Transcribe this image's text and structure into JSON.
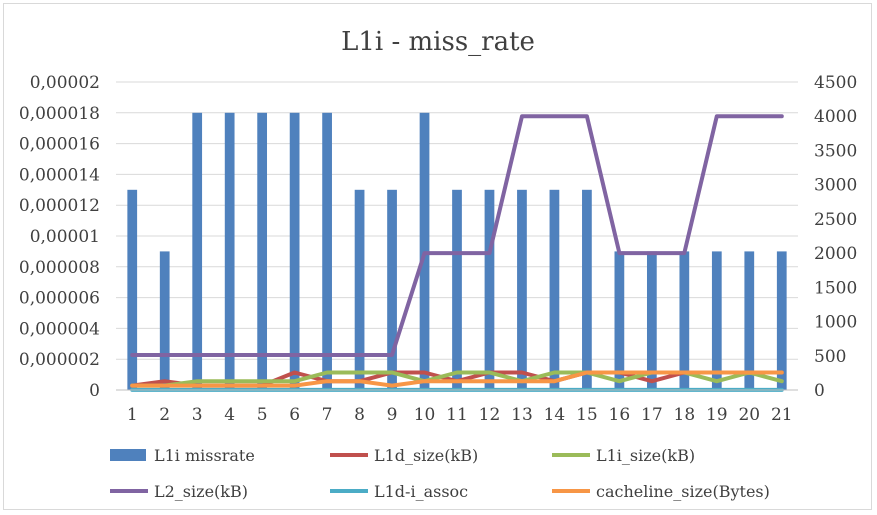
{
  "chart_data": {
    "type": "bar",
    "title": "L1i - miss_rate",
    "categories": [
      "1",
      "2",
      "3",
      "4",
      "5",
      "6",
      "7",
      "8",
      "9",
      "10",
      "11",
      "12",
      "13",
      "14",
      "15",
      "16",
      "17",
      "18",
      "19",
      "20",
      "21"
    ],
    "y_left": {
      "ylim": [
        0,
        2e-05
      ],
      "ticks": [
        "0",
        "0,000002",
        "0,000004",
        "0,000006",
        "0,000008",
        "0,00001",
        "0,000012",
        "0,000014",
        "0,000016",
        "0,000018",
        "0,00002"
      ]
    },
    "y_right": {
      "ylim": [
        0,
        4500
      ],
      "ticks": [
        "0",
        "500",
        "1000",
        "1500",
        "2000",
        "2500",
        "3000",
        "3500",
        "4000",
        "4500"
      ]
    },
    "grid": true,
    "legend_position": "bottom",
    "series": [
      {
        "name": "L1i missrate",
        "type": "bar",
        "axis": "left",
        "color": "#4f81bd",
        "values": [
          1.3e-05,
          9e-06,
          1.8e-05,
          1.8e-05,
          1.8e-05,
          1.8e-05,
          1.8e-05,
          1.3e-05,
          1.3e-05,
          1.8e-05,
          1.3e-05,
          1.3e-05,
          1.3e-05,
          1.3e-05,
          1.3e-05,
          9e-06,
          9e-06,
          9e-06,
          9e-06,
          9e-06,
          9e-06
        ]
      },
      {
        "name": "L1d_size(kB)",
        "type": "line",
        "axis": "right",
        "color": "#c0504d",
        "values": [
          64,
          128,
          64,
          64,
          64,
          256,
          128,
          128,
          256,
          256,
          128,
          256,
          256,
          128,
          256,
          256,
          128,
          256,
          256,
          256,
          256
        ]
      },
      {
        "name": "L1i_size(kB)",
        "type": "line",
        "axis": "right",
        "color": "#9bbb59",
        "values": [
          64,
          64,
          128,
          128,
          128,
          128,
          256,
          256,
          256,
          128,
          256,
          256,
          128,
          256,
          256,
          128,
          256,
          256,
          128,
          256,
          128
        ]
      },
      {
        "name": "L2_size(kB)",
        "type": "line",
        "axis": "right",
        "color": "#8064a2",
        "values": [
          512,
          512,
          512,
          512,
          512,
          512,
          512,
          512,
          512,
          2000,
          2000,
          2000,
          4000,
          4000,
          4000,
          2000,
          2000,
          2000,
          4000,
          4000,
          4000
        ]
      },
      {
        "name": "L1d-i_assoc",
        "type": "line",
        "axis": "right",
        "color": "#4bacc6",
        "values": [
          2,
          2,
          2,
          2,
          2,
          2,
          2,
          2,
          2,
          2,
          2,
          2,
          2,
          2,
          2,
          2,
          2,
          2,
          2,
          2,
          2
        ]
      },
      {
        "name": "cacheline_size(Bytes)",
        "type": "line",
        "axis": "right",
        "color": "#f79646",
        "values": [
          64,
          64,
          64,
          64,
          64,
          64,
          128,
          128,
          64,
          128,
          128,
          128,
          128,
          128,
          256,
          256,
          256,
          256,
          256,
          256,
          256
        ]
      }
    ]
  }
}
